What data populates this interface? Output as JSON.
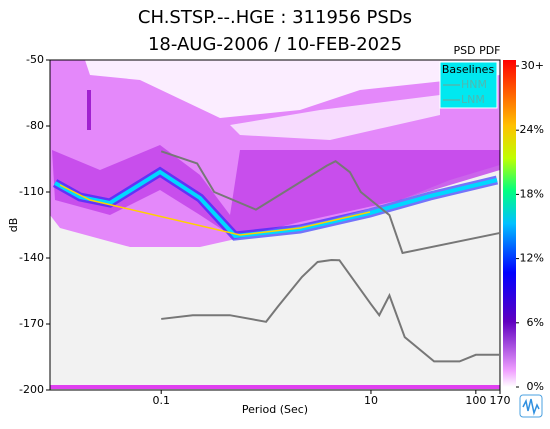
{
  "chart_data": {
    "type": "line",
    "title": "CH.STSP.--.HGE : 311956 PSDs",
    "subtitle": "18-AUG-2006 / 10-FEB-2025",
    "x_label": "Period (Sec)",
    "y_label": "dB",
    "x_log": true,
    "xlim": [
      0.0087,
      170
    ],
    "xticks": [
      0.1,
      10,
      100,
      170
    ],
    "ylim": [
      -200,
      -50
    ],
    "yticks": [
      -50,
      -80,
      -110,
      -140,
      -170,
      -200
    ],
    "legend_title": "Baselines",
    "legend_color": "#4fb8b0",
    "series": [
      {
        "name": "HNM",
        "color": "#777777",
        "x": [
          0.1,
          0.22,
          0.32,
          0.8,
          3.8,
          4.6,
          6.3,
          8,
          15,
          20,
          170
        ],
        "values": [
          -91.5,
          -97,
          -110,
          -118,
          -98,
          -96,
          -101,
          -110,
          -120.5,
          -137.7,
          -128.6
        ]
      },
      {
        "name": "LNM",
        "color": "#777777",
        "x": [
          0.1,
          0.2,
          0.45,
          1,
          1.3,
          2.2,
          3.1,
          4.2,
          5,
          10,
          12,
          15,
          21,
          40,
          70,
          100,
          170
        ],
        "values": [
          -167.7,
          -166,
          -166,
          -169,
          -162,
          -148.6,
          -141.8,
          -140.9,
          -141,
          -161,
          -166,
          -157,
          -176,
          -187,
          -187,
          -184,
          -184
        ]
      }
    ],
    "colorbar": {
      "title": "PSD PDF",
      "ylim": [
        0,
        30
      ],
      "yticks": [
        {
          "value": 30,
          "label": "30+"
        },
        {
          "value": 24,
          "label": "24%"
        },
        {
          "value": 18,
          "label": "18%"
        },
        {
          "value": 12,
          "label": "12%"
        },
        {
          "value": 6,
          "label": "6%"
        },
        {
          "value": 0,
          "label": "0%"
        }
      ]
    }
  }
}
